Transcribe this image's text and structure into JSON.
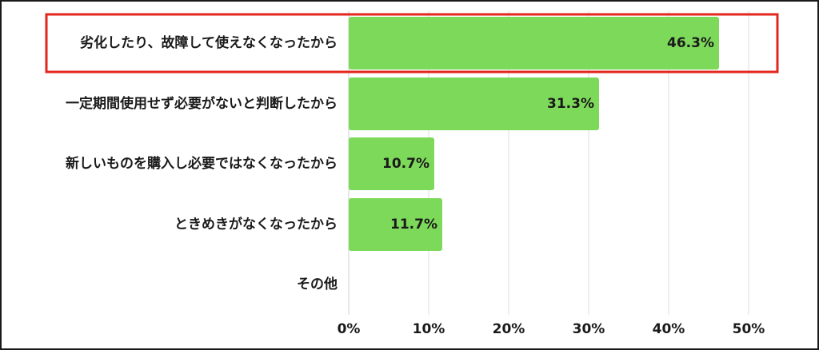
{
  "chart_data": {
    "type": "bar",
    "orientation": "horizontal",
    "categories": [
      "劣化したり、故障して使えなくなったから",
      "一定期間使用せず必要がないと判断したから",
      "新しいものを購入し必要ではなくなったから",
      "ときめきがなくなったから",
      "その他"
    ],
    "values": [
      46.3,
      31.3,
      10.7,
      11.7,
      null
    ],
    "value_labels": [
      "46.3%",
      "31.3%",
      "10.7%",
      "11.7%",
      ""
    ],
    "x_ticks": [
      0,
      10,
      20,
      30,
      40,
      50
    ],
    "x_tick_labels": [
      "0%",
      "10%",
      "20%",
      "30%",
      "40%",
      "50%"
    ],
    "xlim": [
      0,
      50
    ],
    "grid": true,
    "highlight_index": 0,
    "colors": {
      "bar": "#7dd95a",
      "highlight_border": "#e3261c",
      "grid": "#dddddd",
      "text": "#1a1a1a",
      "frame": "#1a1a1a"
    }
  }
}
